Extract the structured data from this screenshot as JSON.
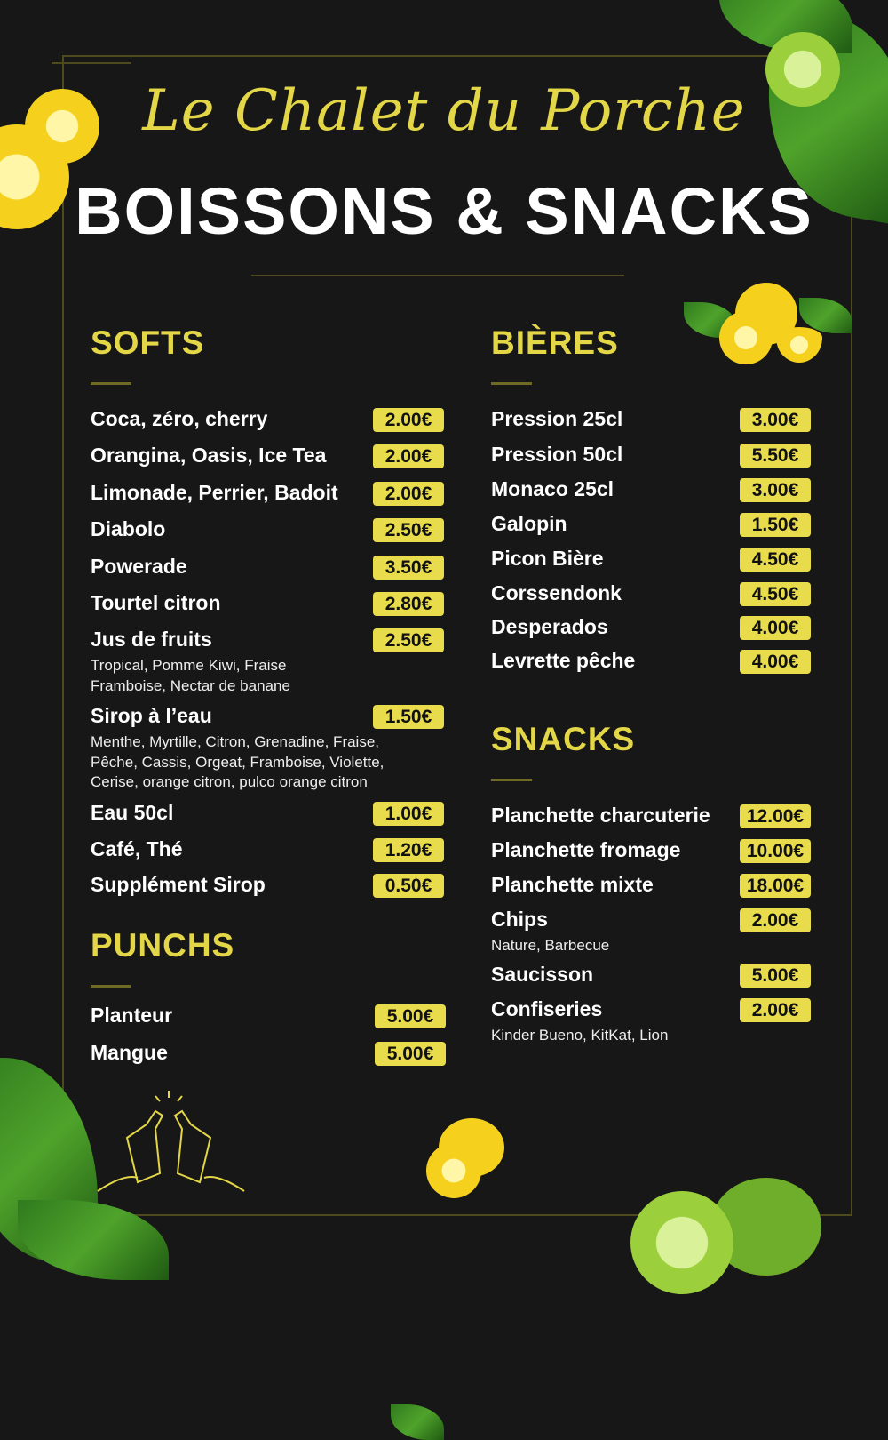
{
  "header": {
    "script_title": "Le Chalet du Porche",
    "title": "BOISSONS & SNACKS"
  },
  "colors": {
    "accent": "#e3d647",
    "price_badge": "#e8dc4c",
    "background": "#171717"
  },
  "sections": {
    "softs": {
      "heading": "SOFTS",
      "items": [
        {
          "name": "Coca, zéro, cherry",
          "price": "2.00€"
        },
        {
          "name": "Orangina, Oasis, Ice Tea",
          "price": "2.00€"
        },
        {
          "name": "Limonade, Perrier, Badoit",
          "price": "2.00€"
        },
        {
          "name": "Diabolo",
          "price": "2.50€"
        },
        {
          "name": "Powerade",
          "price": "3.50€"
        },
        {
          "name": "Tourtel citron",
          "price": "2.80€"
        },
        {
          "name": "Jus de fruits",
          "price": "2.50€",
          "details": [
            "Tropical, Pomme Kiwi, Fraise",
            "Framboise, Nectar de banane"
          ]
        },
        {
          "name": "Sirop à l’eau",
          "price": "1.50€",
          "details": [
            "Menthe, Myrtille, Citron, Grenadine, Fraise,",
            "Pêche, Cassis, Orgeat, Framboise, Violette,",
            "Cerise, orange citron, pulco orange citron"
          ]
        },
        {
          "name": "Eau 50cl",
          "price": "1.00€"
        },
        {
          "name": "Café, Thé",
          "price": "1.20€"
        },
        {
          "name": "Supplément Sirop",
          "price": "0.50€"
        }
      ]
    },
    "punchs": {
      "heading": "PUNCHS",
      "items": [
        {
          "name": "Planteur",
          "price": "5.00€"
        },
        {
          "name": "Mangue",
          "price": "5.00€"
        }
      ]
    },
    "bieres": {
      "heading": "BIÈRES",
      "items": [
        {
          "name": "Pression 25cl",
          "price": "3.00€"
        },
        {
          "name": "Pression 50cl",
          "price": "5.50€"
        },
        {
          "name": "Monaco 25cl",
          "price": "3.00€"
        },
        {
          "name": "Galopin",
          "price": "1.50€"
        },
        {
          "name": "Picon Bière",
          "price": "4.50€"
        },
        {
          "name": "Corssendonk",
          "price": "4.50€"
        },
        {
          "name": "Desperados",
          "price": "4.00€"
        },
        {
          "name": "Levrette pêche",
          "price": "4.00€"
        }
      ]
    },
    "snacks": {
      "heading": "SNACKS",
      "items": [
        {
          "name": "Planchette charcuterie",
          "price": "12.00€"
        },
        {
          "name": "Planchette fromage",
          "price": "10.00€"
        },
        {
          "name": "Planchette mixte",
          "price": "18.00€"
        },
        {
          "name": "Chips",
          "price": "2.00€",
          "details": [
            "Nature, Barbecue"
          ]
        },
        {
          "name": "Saucisson",
          "price": "5.00€"
        },
        {
          "name": "Confiseries",
          "price": "2.00€",
          "details": [
            "Kinder Bueno, KitKat, Lion"
          ]
        }
      ]
    }
  },
  "icons": [
    "lemon-icon",
    "lime-icon",
    "leaf-icon",
    "beer-bottles-cheers-icon"
  ]
}
